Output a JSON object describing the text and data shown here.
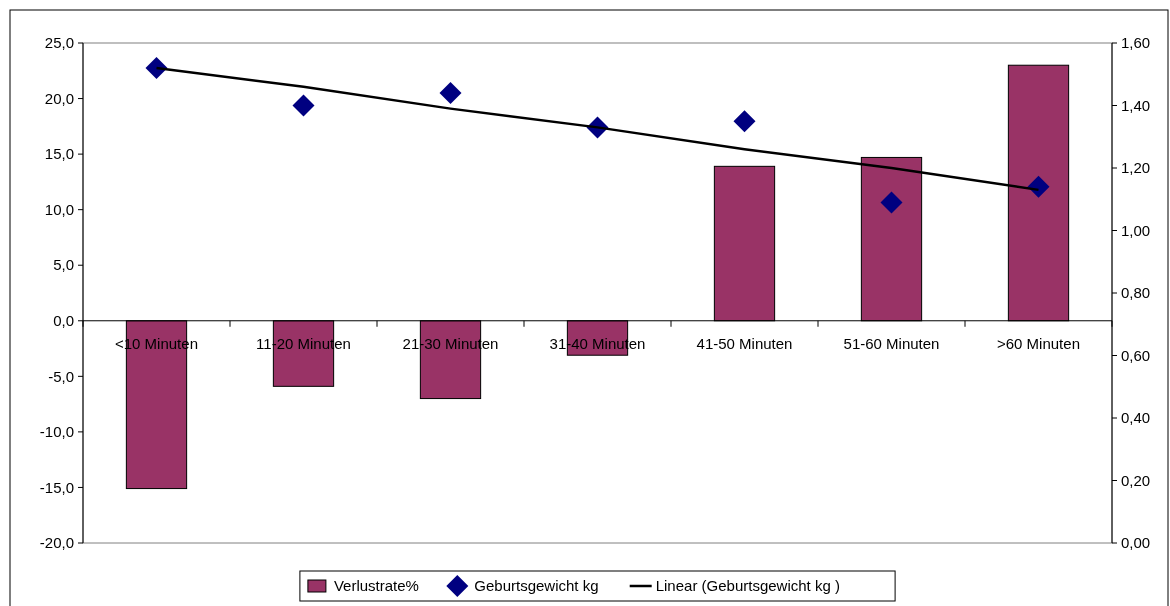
{
  "chart_data": {
    "type": "bar",
    "categories": [
      "<10 Minuten",
      "11-20 Minuten",
      "21-30 Minuten",
      "31-40 Minuten",
      "41-50 Minuten",
      "51-60 Minuten",
      ">60 Minuten"
    ],
    "series": [
      {
        "name": "Verlustrate%",
        "color": "#993366",
        "values": [
          -15.1,
          -5.9,
          -7.0,
          -3.1,
          13.9,
          14.7,
          23.0
        ]
      },
      {
        "name": "Geburtsgewicht kg",
        "type": "scatter",
        "axis": "y2",
        "marker": "diamond",
        "color": "#000080",
        "values": [
          1.52,
          1.4,
          1.44,
          1.33,
          1.35,
          1.09,
          1.14
        ]
      },
      {
        "name": "Linear (Geburtsgewicht kg )",
        "type": "line",
        "axis": "y2",
        "color": "#000000",
        "marker": "none",
        "line_style": "solid",
        "values": [
          1.52,
          1.46,
          1.39,
          1.33,
          1.26,
          1.2,
          1.13
        ]
      }
    ],
    "ylim": [
      -20,
      25
    ],
    "yticks": [
      {
        "value": -20,
        "label": "-20,0"
      },
      {
        "value": -15,
        "label": "-15,0"
      },
      {
        "value": -10,
        "label": "-10,0"
      },
      {
        "value": -5,
        "label": "-5,0"
      },
      {
        "value": 0,
        "label": "0,0"
      },
      {
        "value": 5,
        "label": "5,0"
      },
      {
        "value": 10,
        "label": "10,0"
      },
      {
        "value": 15,
        "label": "15,0"
      },
      {
        "value": 20,
        "label": "20,0"
      },
      {
        "value": 25,
        "label": "25,0"
      }
    ],
    "y2lim": [
      0,
      1.6
    ],
    "y2ticks": [
      {
        "value": 0,
        "label": "0,00"
      },
      {
        "value": 0.2,
        "label": "0,20"
      },
      {
        "value": 0.4,
        "label": "0,40"
      },
      {
        "value": 0.6,
        "label": "0,60"
      },
      {
        "value": 0.8,
        "label": "0,80"
      },
      {
        "value": 1.0,
        "label": "1,00"
      },
      {
        "value": 1.2,
        "label": "1,20"
      },
      {
        "value": 1.4,
        "label": "1,40"
      },
      {
        "value": 1.6,
        "label": "1,60"
      }
    ],
    "grid": false,
    "legend": "bottom"
  }
}
